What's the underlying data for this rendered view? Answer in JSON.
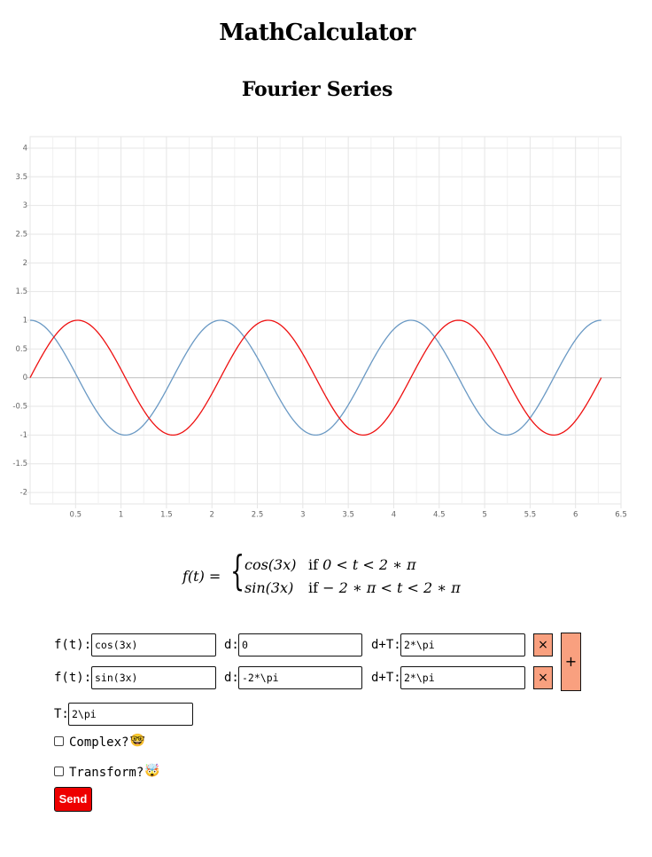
{
  "app": {
    "title": "MathCalculator",
    "page_title": "Fourier Series"
  },
  "chart_data": {
    "type": "line",
    "title": "",
    "xlabel": "",
    "ylabel": "",
    "xlim": [
      0,
      6.5
    ],
    "ylim": [
      -2.2,
      4.2
    ],
    "x_ticks": [
      "0.5",
      "1",
      "1.5",
      "2",
      "2.5",
      "3",
      "3.5",
      "4",
      "4.5",
      "5",
      "5.5",
      "6",
      "6.5"
    ],
    "y_ticks": [
      "4",
      "3.5",
      "3",
      "2.5",
      "2",
      "1.5",
      "1",
      "0.5",
      "0",
      "-0.5",
      "-1",
      "-1.5",
      "-2"
    ],
    "grid": true,
    "legend": "none",
    "series": [
      {
        "function": "cos(3x)",
        "color": "#6a99c4",
        "x": [
          0,
          0.2618,
          0.5236,
          0.7854,
          1.0472,
          1.309,
          1.5708,
          1.8326,
          2.0944,
          2.3562,
          2.618,
          2.8798,
          3.1416,
          3.4034,
          3.6652,
          3.927,
          4.1888,
          4.4506,
          4.7124,
          4.9742,
          5.236,
          5.4978,
          5.7596,
          6.0214,
          6.2832
        ],
        "y": [
          1,
          0.707,
          0,
          -0.707,
          -1,
          -0.707,
          0,
          0.707,
          1,
          0.707,
          0,
          -0.707,
          -1,
          -0.707,
          0,
          0.707,
          1,
          0.707,
          0,
          -0.707,
          -1,
          -0.707,
          0,
          0.707,
          1
        ]
      },
      {
        "function": "sin(3x)",
        "color": "#ee1111",
        "x": [
          0,
          0.2618,
          0.5236,
          0.7854,
          1.0472,
          1.309,
          1.5708,
          1.8326,
          2.0944,
          2.3562,
          2.618,
          2.8798,
          3.1416,
          3.4034,
          3.6652,
          3.927,
          4.1888,
          4.4506,
          4.7124,
          4.9742,
          5.236,
          5.4978,
          5.7596,
          6.0214,
          6.2832
        ],
        "y": [
          0,
          0.707,
          1,
          0.707,
          0,
          -0.707,
          -1,
          -0.707,
          0,
          0.707,
          1,
          0.707,
          0,
          -0.707,
          -1,
          -0.707,
          0,
          0.707,
          1,
          0.707,
          0,
          -0.707,
          -1,
          -0.707,
          0
        ]
      }
    ]
  },
  "formula": {
    "lhs": "f(t) =",
    "case1_expr": "cos(3x)",
    "case1_if": "if",
    "case1_cond": "0 < t < 2 ∗ π",
    "case2_expr": "sin(3x)",
    "case2_if": "if",
    "case2_cond": "− 2 ∗ π < t < 2 ∗ π"
  },
  "form": {
    "f_label": "f(t):",
    "d_label": "d:",
    "dT_label": "d+T:",
    "rows": [
      {
        "f": "cos(3x)",
        "d": "0",
        "dT": "2*\\pi"
      },
      {
        "f": "sin(3x)",
        "d": "-2*\\pi",
        "dT": "2*\\pi"
      }
    ],
    "remove_label": "×",
    "add_label": "+",
    "T_label": "T:",
    "T_value": "2\\pi",
    "complex_label": "Complex?",
    "complex_icon": "🤓",
    "transform_label": "Transform?",
    "transform_icon": "🤯",
    "send_label": "Send",
    "colors": {
      "accent_button": "#f9a07f",
      "send_button": "#ee0000"
    }
  }
}
